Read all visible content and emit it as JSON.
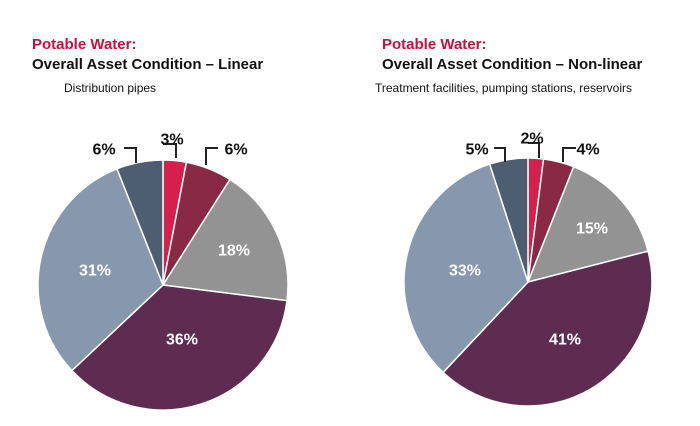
{
  "colors": {
    "title": "#c8103e",
    "leader": "#222222",
    "inner_label": "#ffffff",
    "outer_label": "#111111"
  },
  "chart_data": [
    {
      "type": "pie",
      "title": "Potable Water:",
      "subtitle": "Overall Asset Condition – Linear",
      "caption": "Distribution pipes",
      "slices": [
        {
          "value": 3,
          "label": "3%",
          "color": "#d4204a",
          "label_pos": "outside"
        },
        {
          "value": 6,
          "label": "6%",
          "color": "#8a2943",
          "label_pos": "outside"
        },
        {
          "value": 18,
          "label": "18%",
          "color": "#939393",
          "label_pos": "inside"
        },
        {
          "value": 36,
          "label": "36%",
          "color": "#5e2c50",
          "label_pos": "inside"
        },
        {
          "value": 31,
          "label": "31%",
          "color": "#8797ad",
          "label_pos": "inside"
        },
        {
          "value": 6,
          "label": "6%",
          "color": "#4c5e70",
          "label_pos": "outside"
        }
      ]
    },
    {
      "type": "pie",
      "title": "Potable Water:",
      "subtitle": "Overall Asset Condition – Non-linear",
      "caption": "Treatment facilities, pumping stations, reservoirs",
      "slices": [
        {
          "value": 2,
          "label": "2%",
          "color": "#d4204a",
          "label_pos": "outside"
        },
        {
          "value": 4,
          "label": "4%",
          "color": "#8a2943",
          "label_pos": "outside"
        },
        {
          "value": 15,
          "label": "15%",
          "color": "#939393",
          "label_pos": "inside"
        },
        {
          "value": 41,
          "label": "41%",
          "color": "#5e2c50",
          "label_pos": "inside"
        },
        {
          "value": 33,
          "label": "33%",
          "color": "#8797ad",
          "label_pos": "inside"
        },
        {
          "value": 5,
          "label": "5%",
          "color": "#4c5e70",
          "label_pos": "outside"
        }
      ]
    }
  ]
}
